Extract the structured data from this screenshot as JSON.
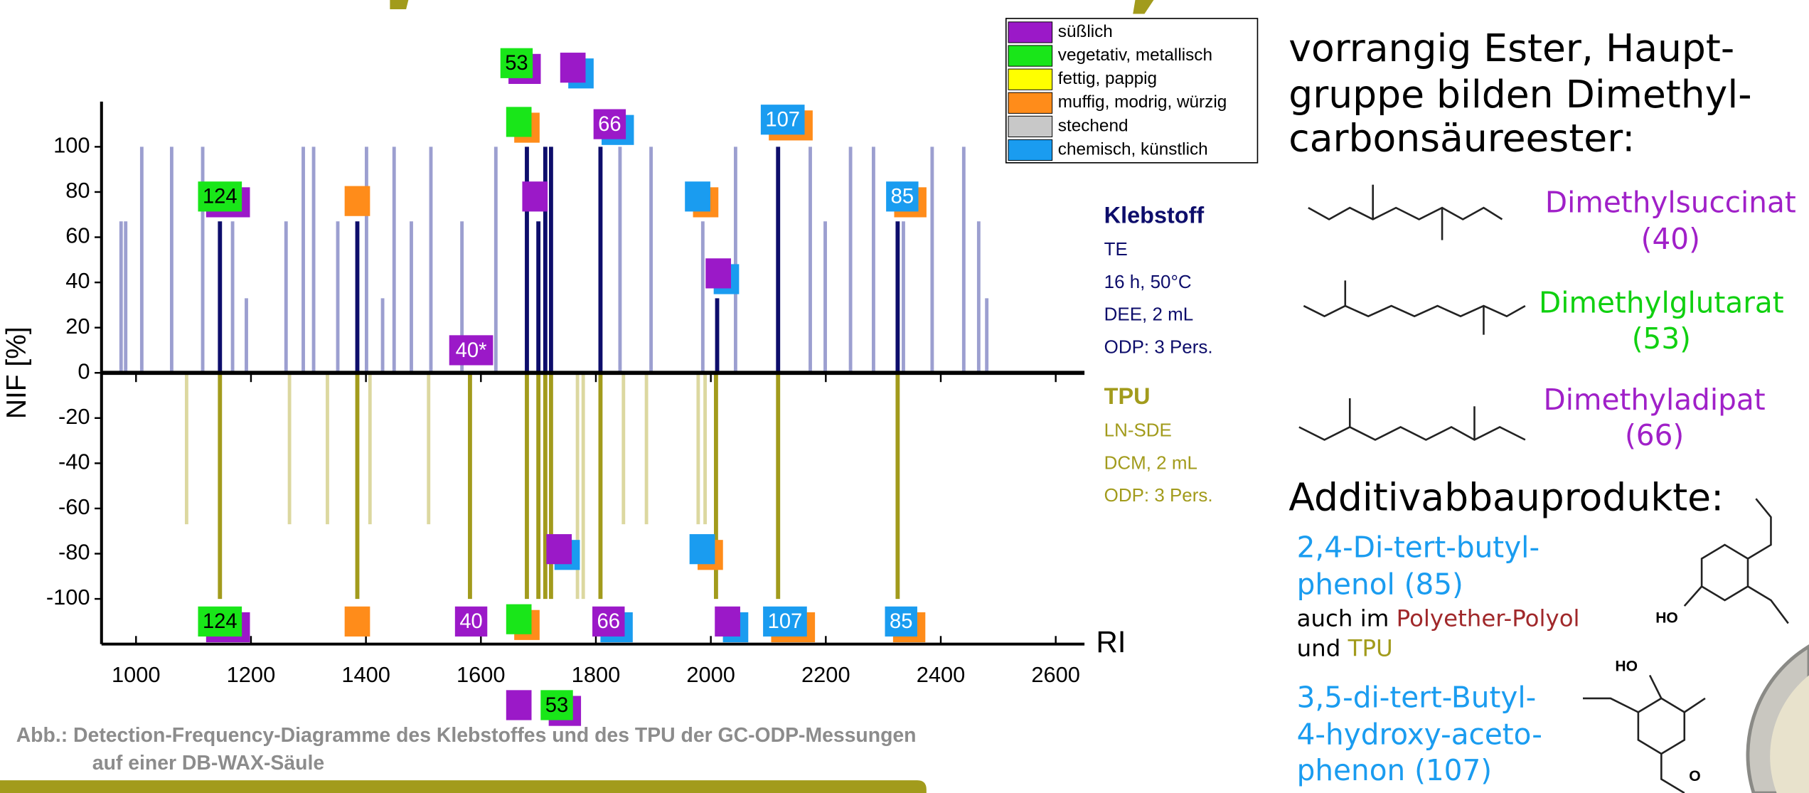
{
  "chart_data": {
    "type": "mirror-bar",
    "x_label": "RI",
    "y_label": "NIF [%]",
    "xlim": [
      940,
      2650
    ],
    "ylim": [
      -120,
      120
    ],
    "xticks": [
      1000,
      1200,
      1400,
      1600,
      1800,
      2000,
      2200,
      2400,
      2600
    ],
    "yticks": [
      -100,
      -80,
      -60,
      -40,
      -20,
      0,
      20,
      40,
      60,
      80,
      100
    ],
    "series": [
      {
        "name": "Klebstoff",
        "color": "#0d0d6b",
        "light_color": "#9c9fd0",
        "details": [
          "TE",
          "16 h, 50°C",
          "DEE, 2 mL",
          "ODP: 3 Pers."
        ],
        "x": [
          974,
          982,
          1010,
          1062,
          1116,
          1146,
          1168,
          1192,
          1261,
          1291,
          1309,
          1351,
          1385,
          1401,
          1429,
          1449,
          1479,
          1513,
          1567,
          1626,
          1680,
          1700,
          1712,
          1722,
          1808,
          1842,
          1896,
          1986,
          2011,
          2043,
          2117,
          2173,
          2199,
          2243,
          2283,
          2325,
          2335,
          2385,
          2440,
          2466,
          2480
        ],
        "values": [
          67,
          67,
          100,
          100,
          100,
          67,
          67,
          33,
          67,
          100,
          100,
          67,
          67,
          100,
          33,
          100,
          67,
          100,
          67,
          100,
          100,
          67,
          100,
          100,
          100,
          100,
          100,
          67,
          33,
          100,
          100,
          100,
          67,
          100,
          100,
          67,
          67,
          100,
          100,
          67,
          33
        ],
        "highlight": [
          false,
          false,
          false,
          false,
          false,
          true,
          false,
          false,
          false,
          false,
          false,
          false,
          true,
          false,
          false,
          false,
          false,
          false,
          false,
          false,
          true,
          true,
          true,
          true,
          true,
          false,
          false,
          false,
          true,
          false,
          true,
          false,
          false,
          false,
          false,
          true,
          false,
          false,
          false,
          false,
          false
        ]
      },
      {
        "name": "TPU",
        "color": "#a29b1c",
        "light_color": "#dcd8a0",
        "details": [
          "LN-SDE",
          "DCM, 2 mL",
          "ODP: 3 Pers."
        ],
        "x": [
          1088,
          1146,
          1267,
          1333,
          1385,
          1407,
          1509,
          1581,
          1680,
          1700,
          1712,
          1722,
          1768,
          1778,
          1808,
          1848,
          1888,
          1978,
          1990,
          2009,
          2117,
          2325
        ],
        "values": [
          -67,
          -100,
          -67,
          -67,
          -100,
          -67,
          -67,
          -100,
          -100,
          -100,
          -100,
          -100,
          -100,
          -100,
          -100,
          -67,
          -67,
          -67,
          -67,
          -100,
          -100,
          -100
        ],
        "highlight": [
          false,
          true,
          false,
          false,
          true,
          false,
          false,
          true,
          true,
          true,
          true,
          true,
          false,
          false,
          true,
          false,
          false,
          false,
          false,
          true,
          true,
          true
        ]
      }
    ],
    "odor_legend": [
      {
        "name": "süßlich",
        "color": "#9b19c8"
      },
      {
        "name": "vegetativ, metallisch",
        "color": "#19e619"
      },
      {
        "name": "fettig, pappig",
        "color": "#ffff00"
      },
      {
        "name": "muffig, modrig, würzig",
        "color": "#ff8c1a"
      },
      {
        "name": "stechend",
        "color": "#c8c8c8"
      },
      {
        "name": "chemisch, künstlich",
        "color": "#1a9cf0"
      }
    ],
    "annotations": [
      {
        "x": 1146,
        "y": 78,
        "odors": [
          1,
          0
        ],
        "label": "124"
      },
      {
        "x": 1385,
        "y": 76,
        "odors": [
          3
        ]
      },
      {
        "x": 1583,
        "y": 10,
        "odors": [
          0
        ],
        "label": "40*"
      },
      {
        "x": 1662,
        "y": 137,
        "odors": [
          1,
          0
        ],
        "label": "53"
      },
      {
        "x": 1760,
        "y": 135,
        "odors": [
          0,
          5
        ]
      },
      {
        "x": 1666,
        "y": 111,
        "odors": [
          1,
          3
        ]
      },
      {
        "x": 1694,
        "y": 78,
        "odors": [
          0
        ]
      },
      {
        "x": 1824,
        "y": 110,
        "odors": [
          0,
          5
        ],
        "label": "66"
      },
      {
        "x": 1977,
        "y": 78,
        "odors": [
          5,
          3
        ]
      },
      {
        "x": 2013,
        "y": 44,
        "odors": [
          0,
          5
        ]
      },
      {
        "x": 2125,
        "y": 112,
        "odors": [
          5,
          3
        ],
        "label": "107"
      },
      {
        "x": 2333,
        "y": 78,
        "odors": [
          5,
          3
        ],
        "label": "85"
      },
      {
        "x": 1146,
        "y": -110,
        "odors": [
          1,
          0
        ],
        "label": "124"
      },
      {
        "x": 1385,
        "y": -110,
        "odors": [
          3
        ]
      },
      {
        "x": 1583,
        "y": -110,
        "odors": [
          0
        ],
        "label": "40"
      },
      {
        "x": 1666,
        "y": -109,
        "odors": [
          1,
          3
        ]
      },
      {
        "x": 1736,
        "y": -78,
        "odors": [
          0,
          5
        ]
      },
      {
        "x": 1985,
        "y": -78,
        "odors": [
          5,
          3
        ]
      },
      {
        "x": 1666,
        "y": -147,
        "odors": [
          0
        ]
      },
      {
        "x": 1732,
        "y": -147,
        "odors": [
          1,
          0
        ],
        "label": "53"
      },
      {
        "x": 1822,
        "y": -110,
        "odors": [
          0,
          5
        ],
        "label": "66"
      },
      {
        "x": 2029,
        "y": -110,
        "odors": [
          0,
          5
        ]
      },
      {
        "x": 2129,
        "y": -110,
        "odors": [
          5,
          3
        ],
        "label": "107"
      },
      {
        "x": 2331,
        "y": -110,
        "odors": [
          5,
          3
        ],
        "label": "85"
      }
    ],
    "caption": [
      "Abb.: Detection-Frequency-Diagramme des Klebstoffes und des TPU der GC-ODP-Messungen",
      "auf einer DB-WAX-Säule"
    ]
  },
  "side_panel": {
    "intro": [
      "vorrangig Ester, Haupt-",
      "gruppe bilden Dimethyl-",
      "carbonsäureester:"
    ],
    "esters": [
      {
        "name": "Dimethylsuccinat",
        "number": "(40)"
      },
      {
        "name": "Dimethylglutarat",
        "number": "(53)"
      },
      {
        "name": "Dimethyladipat",
        "number": "(66)"
      }
    ],
    "additives_heading": "Additivabbauprodukte:",
    "additive_1": [
      "2,4-Di-tert-butyl-",
      "phenol (85)"
    ],
    "additive_1_note": [
      "auch im",
      "Polyether-Polyol",
      "und",
      "TPU"
    ],
    "additive_2": [
      "3,5-di-tert-Butyl-",
      "4-hydroxy-aceto-",
      "phenon (107)"
    ]
  }
}
